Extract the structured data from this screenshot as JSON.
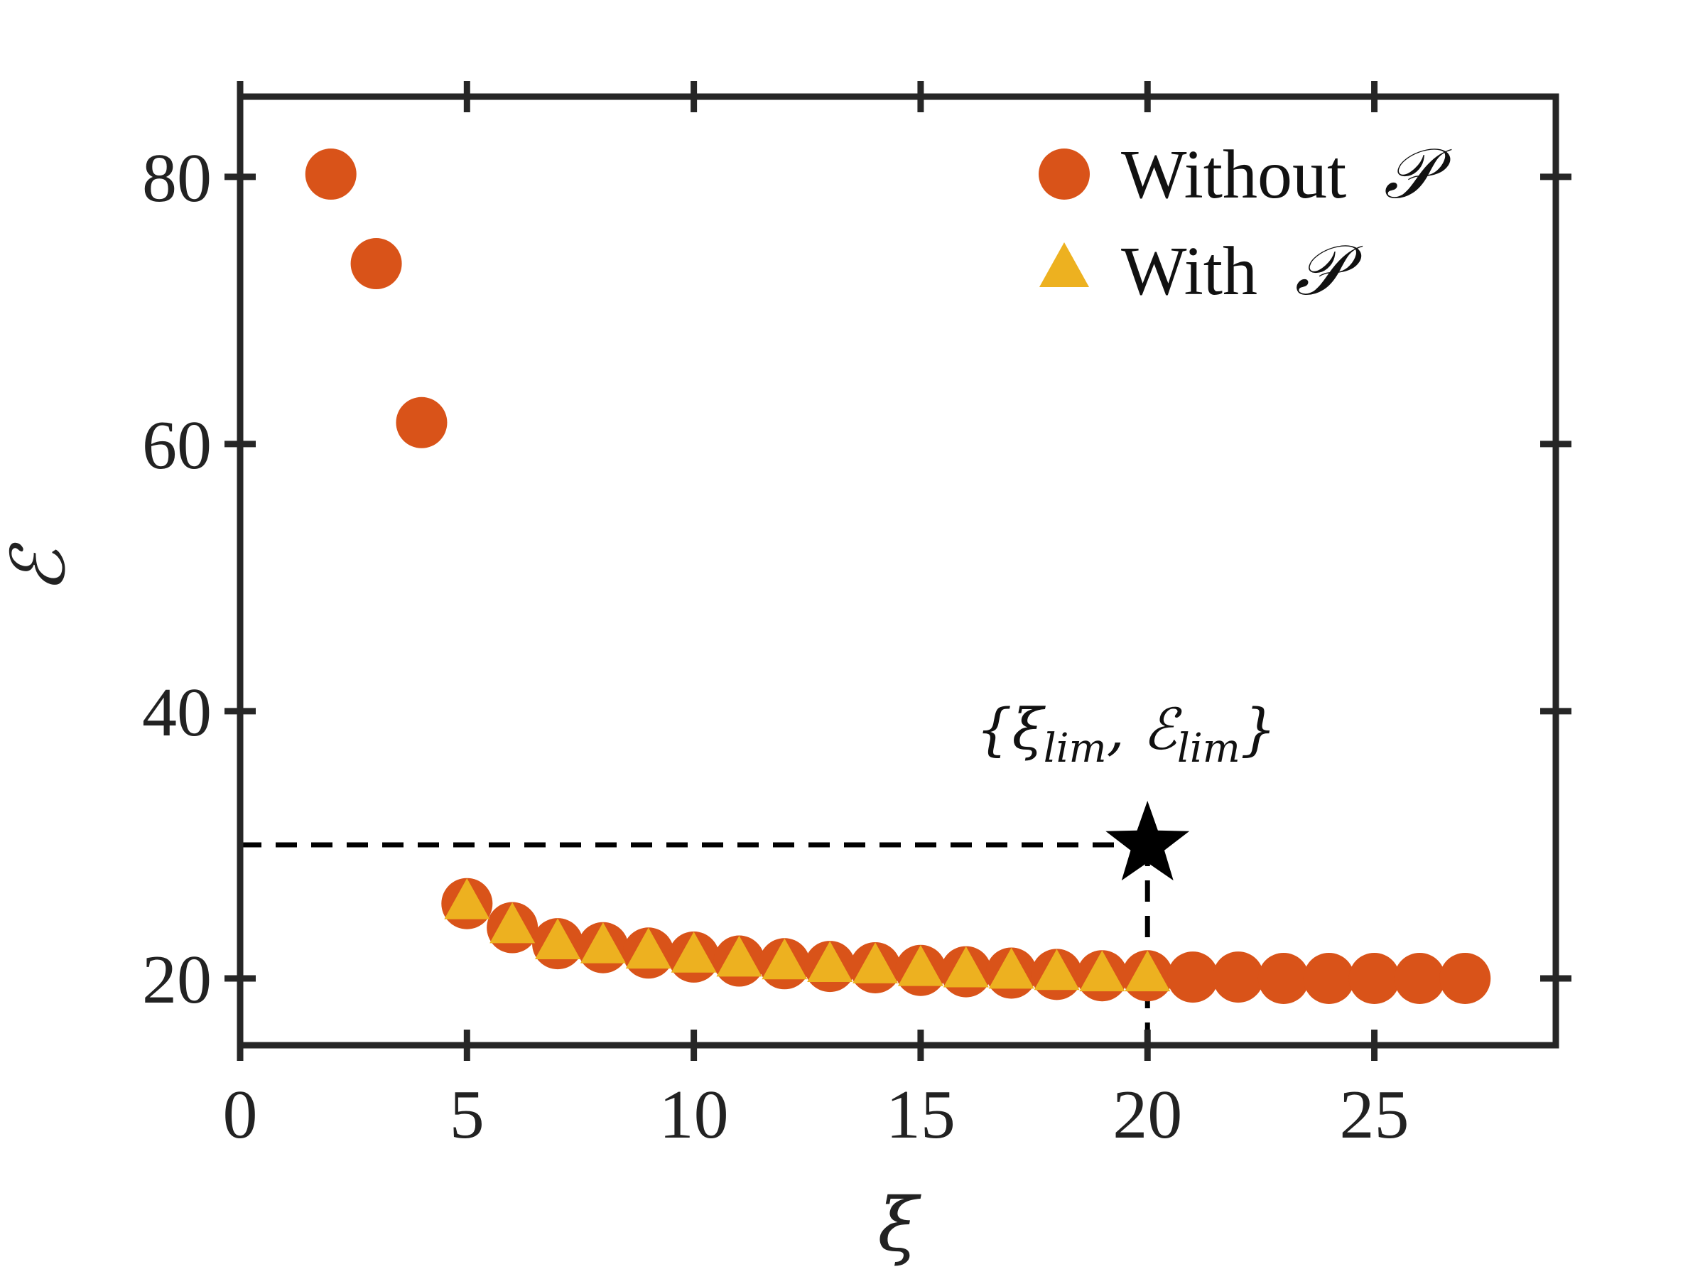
{
  "chart_data": {
    "type": "scatter",
    "xlabel": "ξ",
    "ylabel": "ℰ",
    "xlim": [
      0,
      29
    ],
    "ylim": [
      15,
      86
    ],
    "xticks": [
      0,
      5,
      10,
      15,
      20,
      25
    ],
    "yticks": [
      20,
      40,
      60,
      80
    ],
    "grid": false,
    "legend_position": "top-right",
    "legend": {
      "without_text": "Without",
      "with_text": "With",
      "symbol": "𝒫"
    },
    "colors": {
      "without": "#D95319",
      "with": "#EDB120",
      "axes": "#262626",
      "annotation": "#000000"
    },
    "series": [
      {
        "name": "Without 𝒫",
        "marker": "circle",
        "x": [
          2,
          3,
          4,
          5,
          6,
          7,
          8,
          9,
          10,
          11,
          12,
          13,
          14,
          15,
          16,
          17,
          18,
          19,
          20,
          21,
          22,
          23,
          24,
          25,
          26,
          27
        ],
        "y": [
          80.2,
          73.5,
          61.6,
          25.6,
          23.8,
          22.6,
          22.3,
          21.9,
          21.6,
          21.3,
          21.1,
          20.9,
          20.8,
          20.6,
          20.5,
          20.4,
          20.3,
          20.2,
          20.2,
          20.1,
          20.1,
          20.0,
          20.0,
          20.0,
          20.0,
          20.0
        ]
      },
      {
        "name": "With 𝒫",
        "marker": "triangle",
        "x": [
          5,
          6,
          7,
          8,
          9,
          10,
          11,
          12,
          13,
          14,
          15,
          16,
          17,
          18,
          19,
          20
        ],
        "y": [
          25.6,
          23.8,
          22.6,
          22.3,
          21.9,
          21.6,
          21.3,
          21.1,
          20.9,
          20.8,
          20.6,
          20.5,
          20.4,
          20.3,
          20.2,
          20.2
        ]
      }
    ],
    "limit_point": {
      "x": 20,
      "y": 30,
      "marker": "star",
      "label_open": "{ξ",
      "label_sub1": "lim",
      "label_mid": ", ℰ",
      "label_sub2": "lim",
      "label_close": "}"
    }
  }
}
